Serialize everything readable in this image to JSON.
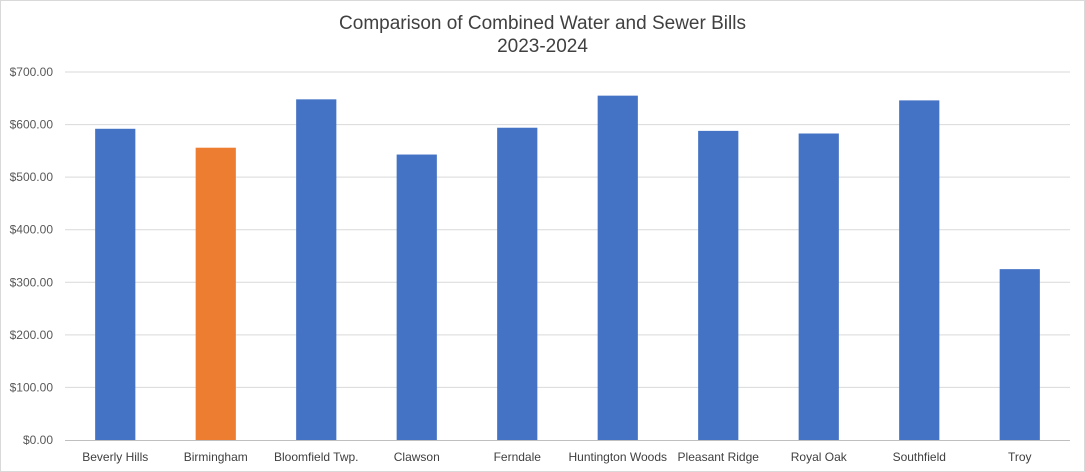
{
  "chart_data": {
    "type": "bar",
    "title": "Comparison of Combined Water and Sewer Bills",
    "subtitle": "2023-2024",
    "xlabel": "",
    "ylabel": "",
    "ylim": [
      0,
      700
    ],
    "ytick_step": 100,
    "ytick_labels": [
      "$0.00",
      "$100.00",
      "$200.00",
      "$300.00",
      "$400.00",
      "$500.00",
      "$600.00",
      "$700.00"
    ],
    "grid": true,
    "categories": [
      "Beverly Hills",
      "Birmingham",
      "Bloomfield Twp.",
      "Clawson",
      "Ferndale",
      "Huntington Woods",
      "Pleasant Ridge",
      "Royal Oak",
      "Southfield",
      "Troy"
    ],
    "values": [
      592,
      556,
      648,
      543,
      594,
      655,
      588,
      583,
      646,
      325
    ],
    "highlight_index": 1,
    "colors": {
      "default_bar": "#4472C4",
      "highlight_bar": "#ED7D31",
      "gridline": "#D9D9D9",
      "axis": "#BFBFBF"
    }
  }
}
